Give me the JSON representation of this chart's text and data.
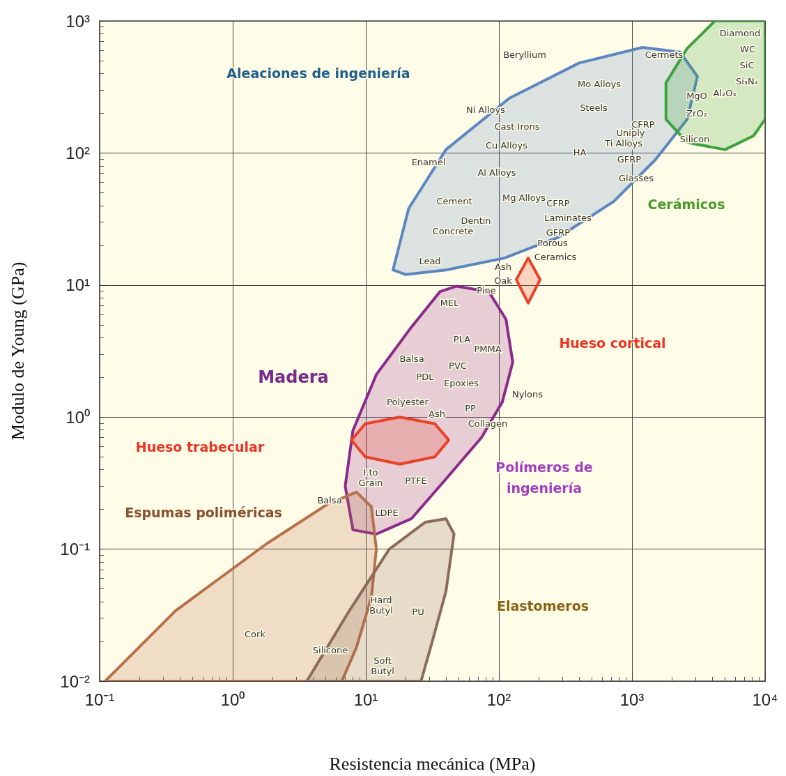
{
  "chart_data": {
    "type": "area",
    "xlabel": "Resistencia mecánica (MPa)",
    "ylabel": "Modulo de Young (GPa)",
    "log": "xy",
    "grid": true,
    "xlim": [
      0.1,
      10000
    ],
    "ylim": [
      0.01,
      1000
    ],
    "xticks": [
      {
        "value": 0.1,
        "label": "10⁻¹"
      },
      {
        "value": 1,
        "label": "10⁰"
      },
      {
        "value": 10,
        "label": "10¹"
      },
      {
        "value": 100,
        "label": "10²"
      },
      {
        "value": 1000,
        "label": "10³"
      },
      {
        "value": 10000,
        "label": "10⁴"
      }
    ],
    "yticks": [
      {
        "value": 0.01,
        "label": "10⁻²"
      },
      {
        "value": 0.1,
        "label": "10⁻¹"
      },
      {
        "value": 1,
        "label": "10⁰"
      },
      {
        "value": 10,
        "label": "10¹"
      },
      {
        "value": 100,
        "label": "10²"
      },
      {
        "value": 1000,
        "label": "10³"
      }
    ],
    "series": [
      {
        "color": "#5b86c0",
        "x": [
          16,
          21,
          40,
          120,
          400,
          1200,
          2300,
          3100,
          2600,
          1500,
          730,
          280,
          110,
          40,
          20,
          16
        ],
        "values": [
          13,
          38,
          106,
          260,
          480,
          630,
          580,
          380,
          180,
          89,
          43,
          23,
          16,
          13,
          12,
          13
        ]
      },
      {
        "color": "#3da23d",
        "x": [
          4200,
          2600,
          1800,
          1800,
          2600,
          5000,
          8200,
          10000,
          10000,
          4200
        ],
        "values": [
          1000,
          620,
          340,
          180,
          120,
          106,
          135,
          180,
          1000,
          1000
        ]
      },
      {
        "color": "#8b2a8b",
        "x": [
          48,
          84,
          113,
          127,
          106,
          74,
          40,
          22,
          12,
          8,
          7,
          8,
          12,
          22,
          36,
          48
        ],
        "values": [
          9.8,
          8.9,
          5.5,
          2.6,
          1.3,
          0.7,
          0.34,
          0.17,
          0.13,
          0.14,
          0.3,
          0.79,
          2.1,
          4.8,
          8.9,
          9.8
        ]
      },
      {
        "color": "#b8704a",
        "x": [
          0.11,
          0.37,
          1.8,
          5.2,
          8.5,
          11,
          12,
          11,
          8.5,
          6.6,
          0.11
        ],
        "values": [
          0.01,
          0.034,
          0.11,
          0.22,
          0.27,
          0.21,
          0.1,
          0.043,
          0.018,
          0.01,
          0.01
        ]
      },
      {
        "color": "#8c6b5a",
        "x": [
          3.6,
          7.5,
          15,
          28,
          40,
          46,
          40,
          32,
          26,
          3.6
        ],
        "values": [
          0.01,
          0.034,
          0.1,
          0.16,
          0.17,
          0.13,
          0.048,
          0.021,
          0.01,
          0.01
        ]
      },
      {
        "color": "#e8422a",
        "x": [
          7.8,
          9.9,
          18,
          33,
          42,
          33,
          18,
          9.9,
          7.8
        ],
        "values": [
          0.67,
          0.89,
          1,
          0.89,
          0.67,
          0.5,
          0.44,
          0.5,
          0.67
        ]
      },
      {
        "color": "#e8422a",
        "x": [
          135,
          166,
          204,
          166,
          135
        ],
        "values": [
          11,
          16,
          11,
          7.3,
          11
        ]
      }
    ],
    "annotations": [
      "Aleaciones de ingeniería",
      "Cerámicos",
      "Madera",
      "Hueso cortical",
      "Hueso trabecular",
      "Polímeros de\ningeniería",
      "Espumas poliméricas",
      "Elastomeros",
      "Beryllium",
      "Mo Alloys",
      "Cermets",
      "Diamond",
      "WC",
      "SiC",
      "Si₃N₄",
      "Al₂O₃",
      "MgO",
      "ZrO₂",
      "Silicon",
      "Ni Alloys",
      "Steels",
      "Cast Irons",
      "CFRP",
      "Uniply",
      "Cu Alloys",
      "Ti Alloys",
      "HA",
      "Enamel",
      "GFRP",
      "Al Alloys",
      "Glasses",
      "Cement",
      "Mg Alloys",
      "CFRP",
      "Laminates",
      "Dentin",
      "Concrete",
      "GFRP",
      "Porous",
      "Ceramics",
      "Lead",
      "Ash",
      "Oak",
      "Pine",
      "MEL",
      "PLA",
      "PMMA",
      "Balsa",
      "PVC",
      "PDL",
      "Epoxies",
      "Nylons",
      "Polyester",
      "Ash",
      "PP",
      "Collagen",
      "I.to\nGrain",
      "PTFE",
      "Balsa",
      "LDPE",
      "Cork",
      "Hard\nButyl",
      "PU",
      "Silicone",
      "Soft\nButyl"
    ]
  }
}
